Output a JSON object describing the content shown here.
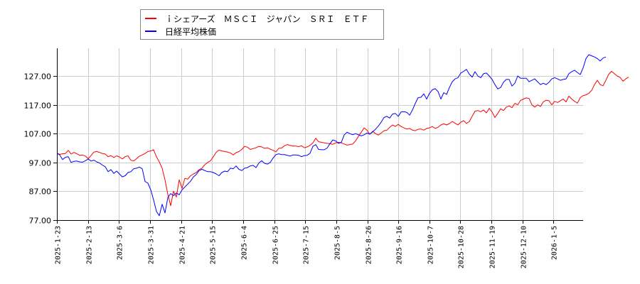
{
  "chart_data": {
    "type": "line",
    "title": "",
    "xlabel": "",
    "ylabel": "",
    "ylim": [
      77,
      137
    ],
    "grid": true,
    "legend_position": "top-left",
    "y_ticks": [
      "77.00",
      "87.00",
      "97.00",
      "107.00",
      "117.00",
      "127.00"
    ],
    "x_ticks": [
      "2025-1-23",
      "2025-2-13",
      "2025-3-6",
      "2025-3-31",
      "2025-4-21",
      "2025-5-15",
      "2025-6-4",
      "2025-6-25",
      "2025-7-15",
      "2025-8-5",
      "2025-8-26",
      "2025-9-16",
      "2025-10-7",
      "2025-10-28",
      "2025-11-19",
      "2025-12-10",
      "2026-1-5"
    ],
    "series": [
      {
        "name": "ｉシェアーズ　ＭＳＣＩ　ジャパン　ＳＲＩ　ＥＴＦ",
        "color": "#ff0000",
        "x_index": [
          0,
          2,
          4,
          6,
          8,
          10,
          12,
          14,
          16,
          18,
          20,
          22,
          24,
          26,
          28,
          30,
          32,
          34,
          36,
          38,
          40,
          42,
          44,
          46,
          48,
          50,
          52,
          54,
          56,
          58,
          60,
          62,
          64,
          66,
          68,
          70,
          72,
          74,
          76,
          78,
          80,
          82,
          84,
          86,
          88,
          90,
          92,
          94,
          96,
          98,
          100,
          102,
          104,
          106,
          108,
          110,
          112,
          114,
          116,
          118,
          120,
          122,
          124,
          126,
          128,
          130,
          132,
          134,
          136,
          138,
          140,
          142,
          144,
          146,
          148,
          150,
          152,
          154,
          156,
          158,
          160,
          162,
          164,
          166,
          168,
          170,
          172,
          174,
          176,
          178,
          180,
          182,
          184,
          186,
          188,
          190,
          192,
          194,
          196,
          198,
          200,
          202,
          204,
          206,
          208,
          210,
          212,
          214,
          216,
          218,
          220,
          222,
          224,
          226,
          228,
          230,
          232,
          234,
          236,
          238,
          240,
          242,
          244,
          246,
          248,
          250,
          252,
          254,
          256,
          258,
          260,
          262,
          264,
          266,
          268,
          270,
          272,
          274,
          276,
          278,
          280,
          282,
          284,
          286,
          288,
          290,
          292,
          294,
          296,
          298,
          300,
          302,
          304,
          306,
          308,
          310,
          312,
          314,
          316,
          318,
          320,
          322,
          324,
          326,
          328,
          330,
          332,
          334,
          336,
          338,
          340,
          342,
          344,
          346,
          348,
          350,
          352,
          354,
          356,
          358,
          360,
          362,
          364,
          366,
          368,
          370
        ],
        "values": [
          100.2,
          99.8,
          100.0,
          100.1,
          101.2,
          99.9,
          100.5,
          100.0,
          99.5,
          99.6,
          99.2,
          98.3,
          99.4,
          100.6,
          100.8,
          100.5,
          100.1,
          99.9,
          99.0,
          99.4,
          98.7,
          99.3,
          98.9,
          98.2,
          99.0,
          99.3,
          97.8,
          97.5,
          98.3,
          99.2,
          99.6,
          100.1,
          100.8,
          101.0,
          101.4,
          99.0,
          97.2,
          95.0,
          91.0,
          86.0,
          82.0,
          87.0,
          85.0,
          91.0,
          88.0,
          91.5,
          91.2,
          92.4,
          93.0,
          93.5,
          94.5,
          95.0,
          96.2,
          97.0,
          97.6,
          99.0,
          100.5,
          101.3,
          101.0,
          100.8,
          100.6,
          100.3,
          99.6,
          100.4,
          100.8,
          101.5,
          102.6,
          102.3,
          101.5,
          101.8,
          102.1,
          102.6,
          102.4,
          101.9,
          102.1,
          101.6,
          101.2,
          100.7,
          101.9,
          102.0,
          102.8,
          103.2,
          102.9,
          102.7,
          102.7,
          102.5,
          102.8,
          102.1,
          102.4,
          102.9,
          103.8,
          105.4,
          104.2,
          104.0,
          103.8,
          103.6,
          103.5,
          103.3,
          103.8,
          104.0,
          103.8,
          103.4,
          103.0,
          103.2,
          103.4,
          104.5,
          106.0,
          107.5,
          109.0,
          108.2,
          106.8,
          107.8,
          107.0,
          106.5,
          107.2,
          108.0,
          108.2,
          109.2,
          110.0,
          109.5,
          110.2,
          109.5,
          109.0,
          108.6,
          108.8,
          108.2,
          108.0,
          108.5,
          108.6,
          108.2,
          108.8,
          109.0,
          109.5,
          108.8,
          109.2,
          110.0,
          110.4,
          110.0,
          110.5,
          111.2,
          110.6,
          110.0,
          111.0,
          111.5,
          110.5,
          111.2,
          113.0,
          114.8,
          115.0,
          114.6,
          115.2,
          114.2,
          115.8,
          114.5,
          112.6,
          114.0,
          115.6,
          115.0,
          116.2,
          116.6,
          116.0,
          117.5,
          117.0,
          118.5,
          119.0,
          119.4,
          119.2,
          117.0,
          116.2,
          117.0,
          116.4,
          118.0,
          118.6,
          118.4,
          117.0,
          118.2,
          117.8,
          118.4,
          119.0,
          118.0,
          120.0,
          119.0,
          118.2,
          117.6,
          119.5,
          120.2,
          120.4,
          121.0,
          122.0,
          124.0,
          125.5,
          124.0,
          123.6,
          125.5,
          127.6,
          128.6,
          127.8,
          127.0,
          126.5,
          125.2,
          126.0,
          126.6
        ]
      },
      {
        "name": "日経平均株価",
        "color": "#0000ff",
        "x_index": [
          0,
          2,
          4,
          6,
          8,
          10,
          12,
          14,
          16,
          18,
          20,
          22,
          24,
          26,
          28,
          30,
          32,
          34,
          36,
          38,
          40,
          42,
          44,
          46,
          48,
          50,
          52,
          54,
          56,
          58,
          60,
          62,
          64,
          66,
          68,
          70,
          72,
          74,
          76,
          78,
          80,
          82,
          84,
          86,
          88,
          90,
          92,
          94,
          96,
          98,
          100,
          102,
          104,
          106,
          108,
          110,
          112,
          114,
          116,
          118,
          120,
          122,
          124,
          126,
          128,
          130,
          132,
          134,
          136,
          138,
          140,
          142,
          144,
          146,
          148,
          150,
          152,
          154,
          156,
          158,
          160,
          162,
          164,
          166,
          168,
          170,
          172,
          174,
          176,
          178,
          180,
          182,
          184,
          186,
          188,
          190,
          192,
          194,
          196,
          198,
          200,
          202,
          204,
          206,
          208,
          210,
          212,
          214,
          216,
          218,
          220,
          222,
          224,
          226,
          228,
          230,
          232,
          234,
          236,
          238,
          240,
          242,
          244,
          246,
          248,
          250,
          252,
          254,
          256,
          258,
          260,
          262,
          264,
          266,
          268,
          270,
          272,
          274,
          276,
          278,
          280,
          282,
          284,
          286,
          288,
          290,
          292,
          294,
          296,
          298,
          300,
          302,
          304,
          306,
          308,
          310,
          312,
          314,
          316,
          318,
          320,
          322,
          324,
          326,
          328,
          330,
          332,
          334,
          336,
          338,
          340,
          342,
          344,
          346,
          348,
          350,
          352,
          354,
          356,
          358,
          360,
          362,
          364,
          366,
          368,
          370
        ],
        "values": [
          100.2,
          99.6,
          98.0,
          98.8,
          99.0,
          97.0,
          97.4,
          97.5,
          97.2,
          97.1,
          97.6,
          98.2,
          97.5,
          97.8,
          97.2,
          96.8,
          96.1,
          95.5,
          93.8,
          94.5,
          93.2,
          94.0,
          93.0,
          92.0,
          92.4,
          93.5,
          93.8,
          94.8,
          95.0,
          95.4,
          94.8,
          90.4,
          89.8,
          87.5,
          84.0,
          80.0,
          78.5,
          82.5,
          79.5,
          84.8,
          86.2,
          85.5,
          86.4,
          85.8,
          87.5,
          88.5,
          89.5,
          90.5,
          92.0,
          92.8,
          94.2,
          94.6,
          94.2,
          93.8,
          93.8,
          93.5,
          93.0,
          92.4,
          93.5,
          94.0,
          93.8,
          95.0,
          94.8,
          95.8,
          94.6,
          94.2,
          95.0,
          95.2,
          95.8,
          96.0,
          95.2,
          96.8,
          97.6,
          96.7,
          96.4,
          97.0,
          98.5,
          99.7,
          100.0,
          99.7,
          99.7,
          99.5,
          99.2,
          99.6,
          99.6,
          99.5,
          99.0,
          99.4,
          99.5,
          100.2,
          102.6,
          103.2,
          101.5,
          101.4,
          101.4,
          102.0,
          103.5,
          104.8,
          104.5,
          103.6,
          104.0,
          106.5,
          107.5,
          107.0,
          106.6,
          107.0,
          106.6,
          106.2,
          106.6,
          107.2,
          106.8,
          107.6,
          108.5,
          109.6,
          111.0,
          112.6,
          113.0,
          112.4,
          113.8,
          114.0,
          113.0,
          114.5,
          114.6,
          114.4,
          113.4,
          115.2,
          117.5,
          119.5,
          119.6,
          120.8,
          119.0,
          121.0,
          122.2,
          122.6,
          121.6,
          119.0,
          121.2,
          120.6,
          123.0,
          125.0,
          126.0,
          126.4,
          128.0,
          128.6,
          129.3,
          127.6,
          126.6,
          128.5,
          127.0,
          126.4,
          127.8,
          128.0,
          127.0,
          125.8,
          124.0,
          122.5,
          123.0,
          124.8,
          125.8,
          125.8,
          123.5,
          124.5,
          127.0,
          126.2,
          126.2,
          126.2,
          125.0,
          125.5,
          126.0,
          125.0,
          124.0,
          124.5,
          124.0,
          124.8,
          126.0,
          126.4,
          126.0,
          125.5,
          125.8,
          126.0,
          127.8,
          128.5,
          129.0,
          128.2,
          127.5,
          129.8,
          133.0,
          134.4,
          134.0,
          133.6,
          133.0,
          132.2,
          133.2,
          133.6
        ]
      }
    ]
  },
  "legend": {
    "items": [
      {
        "label": "ｉシェアーズ　ＭＳＣＩ　ジャパン　ＳＲＩ　ＥＴＦ",
        "color": "#ff0000"
      },
      {
        "label": "日経平均株価",
        "color": "#0000ff"
      }
    ]
  }
}
